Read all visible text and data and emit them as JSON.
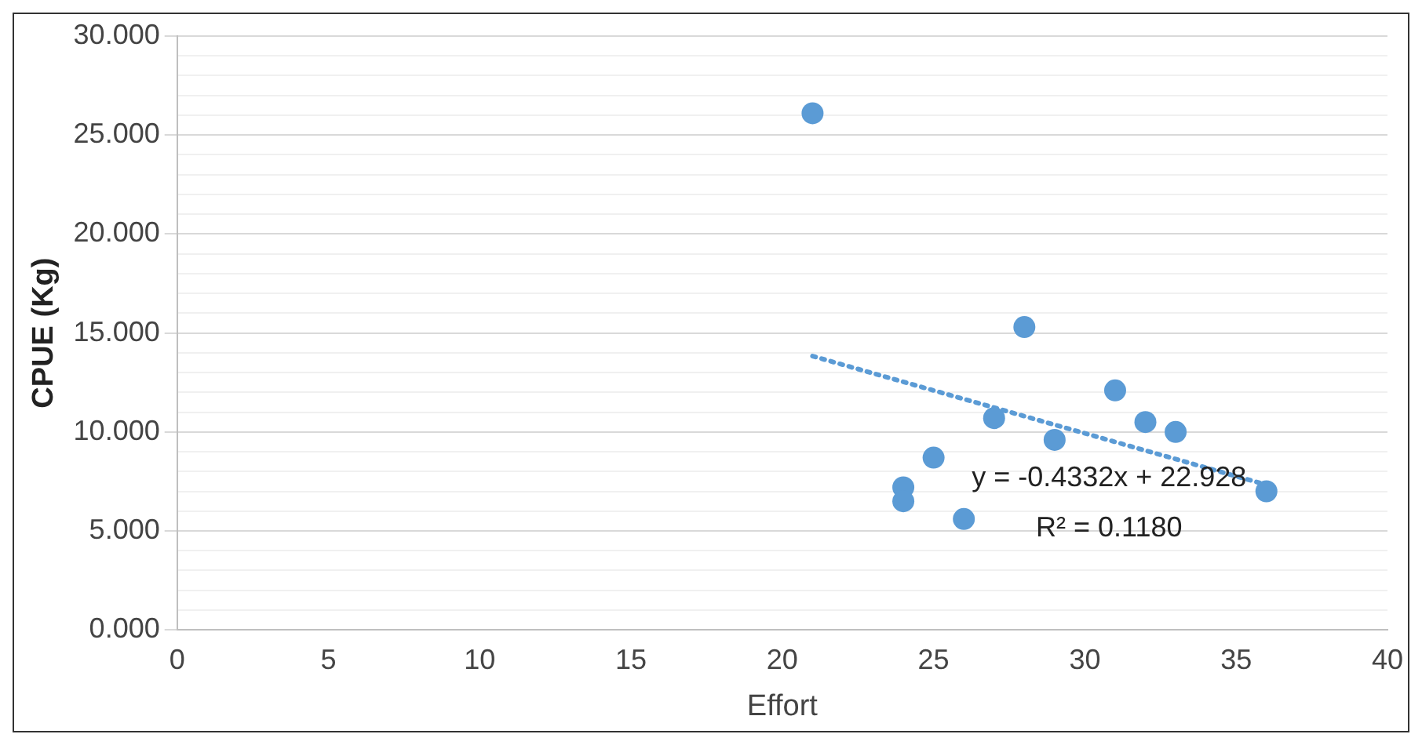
{
  "chart_data": {
    "type": "scatter",
    "xlabel": "Effort",
    "ylabel": "CPUE (Kg)",
    "xlim": [
      0,
      40
    ],
    "xticks": [
      0,
      5,
      10,
      15,
      20,
      25,
      30,
      35,
      40
    ],
    "ylim": [
      0,
      30
    ],
    "yticks": [
      {
        "value": 0,
        "label": "0.000"
      },
      {
        "value": 1,
        "label": null
      },
      {
        "value": 2,
        "label": null
      },
      {
        "value": 3,
        "label": null
      },
      {
        "value": 4,
        "label": null
      },
      {
        "value": 5,
        "label": "5.000"
      },
      {
        "value": 6,
        "label": null
      },
      {
        "value": 7,
        "label": null
      },
      {
        "value": 8,
        "label": null
      },
      {
        "value": 9,
        "label": null
      },
      {
        "value": 10,
        "label": "10.000"
      },
      {
        "value": 11,
        "label": null
      },
      {
        "value": 12,
        "label": null
      },
      {
        "value": 13,
        "label": null
      },
      {
        "value": 14,
        "label": null
      },
      {
        "value": 15,
        "label": "15.000"
      },
      {
        "value": 16,
        "label": null
      },
      {
        "value": 17,
        "label": null
      },
      {
        "value": 18,
        "label": null
      },
      {
        "value": 19,
        "label": null
      },
      {
        "value": 20,
        "label": "20.000"
      },
      {
        "value": 21,
        "label": null
      },
      {
        "value": 22,
        "label": null
      },
      {
        "value": 23,
        "label": null
      },
      {
        "value": 24,
        "label": null
      },
      {
        "value": 25,
        "label": "25.000"
      },
      {
        "value": 26,
        "label": null
      },
      {
        "value": 27,
        "label": null
      },
      {
        "value": 28,
        "label": null
      },
      {
        "value": 29,
        "label": null
      },
      {
        "value": 30,
        "label": "30.000"
      }
    ],
    "grid": "y",
    "legend": false,
    "series": [
      {
        "type": "scatter",
        "color": "#5b9bd5",
        "marker": "circle",
        "x": [
          21,
          28,
          31,
          27,
          32,
          33,
          29,
          25,
          24,
          24,
          26,
          36
        ],
        "values": [
          26.1,
          15.3,
          12.1,
          10.7,
          10.5,
          10.0,
          9.6,
          8.7,
          7.2,
          6.5,
          5.6,
          7.0
        ]
      },
      {
        "type": "line",
        "color": "#5b9bd5",
        "marker": "none",
        "line_style": "dotted",
        "x": [
          21,
          36
        ],
        "values": [
          13.83,
          7.33
        ]
      }
    ],
    "annotations": [
      "y = -0.4332x + 22.928",
      "R² = 0.1180"
    ]
  }
}
